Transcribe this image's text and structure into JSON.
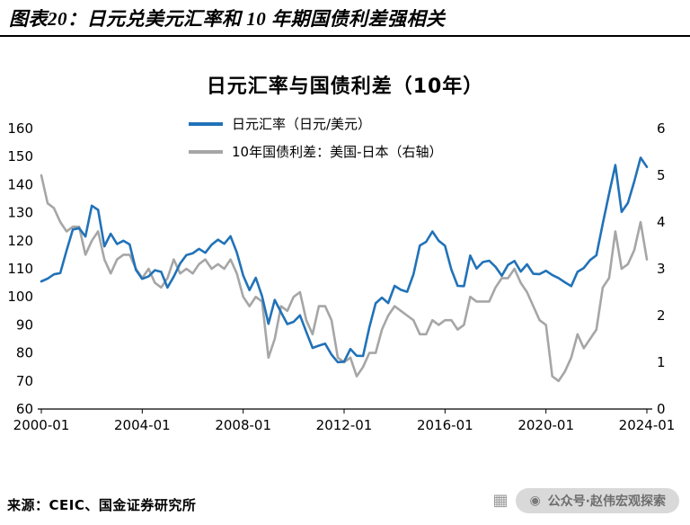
{
  "header": {
    "title": "图表20：日元兑美元汇率和 10 年期国债利差强相关"
  },
  "footer": {
    "source": "来源：CEIC、国金证券研究所",
    "badge": {
      "label": "公众号·赵伟宏观探索",
      "qr_icon_glyph": "▦",
      "camera_icon_glyph": "◉"
    }
  },
  "chart_data": {
    "type": "line",
    "title": "日元汇率与国债利差（10年）",
    "grid": false,
    "legend_position": "top-left-inside",
    "x_ticks": [
      "2000-01",
      "2004-01",
      "2008-01",
      "2012-01",
      "2016-01",
      "2020-01",
      "2024-01"
    ],
    "y_left": {
      "min": 60,
      "max": 160,
      "ticks": [
        60,
        70,
        80,
        90,
        100,
        110,
        120,
        130,
        140,
        150,
        160
      ]
    },
    "y_right": {
      "min": 0,
      "max": 6,
      "ticks": [
        0,
        1,
        2,
        3,
        4,
        5,
        6
      ]
    },
    "x": [
      "2000-01",
      "2000-04",
      "2000-07",
      "2000-10",
      "2001-01",
      "2001-04",
      "2001-07",
      "2001-10",
      "2002-01",
      "2002-04",
      "2002-07",
      "2002-10",
      "2003-01",
      "2003-04",
      "2003-07",
      "2003-10",
      "2004-01",
      "2004-04",
      "2004-07",
      "2004-10",
      "2005-01",
      "2005-04",
      "2005-07",
      "2005-10",
      "2006-01",
      "2006-04",
      "2006-07",
      "2006-10",
      "2007-01",
      "2007-04",
      "2007-07",
      "2007-10",
      "2008-01",
      "2008-04",
      "2008-07",
      "2008-10",
      "2009-01",
      "2009-04",
      "2009-07",
      "2009-10",
      "2010-01",
      "2010-04",
      "2010-07",
      "2010-10",
      "2011-01",
      "2011-04",
      "2011-07",
      "2011-10",
      "2012-01",
      "2012-04",
      "2012-07",
      "2012-10",
      "2013-01",
      "2013-04",
      "2013-07",
      "2013-10",
      "2014-01",
      "2014-04",
      "2014-07",
      "2014-10",
      "2015-01",
      "2015-04",
      "2015-07",
      "2015-10",
      "2016-01",
      "2016-04",
      "2016-07",
      "2016-10",
      "2017-01",
      "2017-04",
      "2017-07",
      "2017-10",
      "2018-01",
      "2018-04",
      "2018-07",
      "2018-10",
      "2019-01",
      "2019-04",
      "2019-07",
      "2019-10",
      "2020-01",
      "2020-04",
      "2020-07",
      "2020-10",
      "2021-01",
      "2021-04",
      "2021-07",
      "2021-10",
      "2022-01",
      "2022-04",
      "2022-07",
      "2022-10",
      "2023-01",
      "2023-04",
      "2023-07",
      "2023-10",
      "2024-01"
    ],
    "series": [
      {
        "name": "日元汇率（日元/美元）",
        "axis": "left",
        "color": "#2172B8",
        "values": [
          105.5,
          106.5,
          108.0,
          108.5,
          116.5,
          124.0,
          124.5,
          121.5,
          132.5,
          131.0,
          118.0,
          122.5,
          118.8,
          120.0,
          118.7,
          109.6,
          106.4,
          107.3,
          109.5,
          108.9,
          103.3,
          107.2,
          111.9,
          114.9,
          115.5,
          117.1,
          115.7,
          118.6,
          120.4,
          118.9,
          121.6,
          115.8,
          107.6,
          102.4,
          106.8,
          100.2,
          90.4,
          98.9,
          94.5,
          90.3,
          91.1,
          93.4,
          87.5,
          81.8,
          82.6,
          83.3,
          79.4,
          76.7,
          76.9,
          81.4,
          79.0,
          78.9,
          89.1,
          97.7,
          99.7,
          97.8,
          103.9,
          102.5,
          101.8,
          108.0,
          118.3,
          119.6,
          123.3,
          120.0,
          118.2,
          109.7,
          103.9,
          103.8,
          114.7,
          110.1,
          112.4,
          112.9,
          110.7,
          107.5,
          111.4,
          112.8,
          109.0,
          111.6,
          108.2,
          108.1,
          109.3,
          107.8,
          106.7,
          105.2,
          103.8,
          108.9,
          110.3,
          113.1,
          114.8,
          126.1,
          136.7,
          147.0,
          130.3,
          133.5,
          141.2,
          149.6,
          146.3
        ]
      },
      {
        "name": "10年国债利差：美国-日本（右轴）",
        "axis": "right",
        "color": "#A6A6A6",
        "values": [
          5.0,
          4.4,
          4.3,
          4.0,
          3.8,
          3.9,
          3.9,
          3.3,
          3.6,
          3.8,
          3.2,
          2.9,
          3.2,
          3.3,
          3.3,
          3.0,
          2.8,
          3.0,
          2.7,
          2.6,
          2.8,
          3.2,
          2.9,
          3.0,
          2.9,
          3.1,
          3.2,
          3.0,
          3.1,
          3.0,
          3.2,
          2.9,
          2.4,
          2.2,
          2.4,
          2.3,
          1.1,
          1.5,
          2.2,
          2.1,
          2.4,
          2.5,
          1.9,
          1.6,
          2.2,
          2.2,
          1.9,
          1.1,
          1.0,
          1.1,
          0.7,
          0.9,
          1.2,
          1.2,
          1.7,
          2.0,
          2.2,
          2.1,
          2.0,
          1.9,
          1.6,
          1.6,
          1.9,
          1.8,
          1.9,
          1.9,
          1.7,
          1.8,
          2.4,
          2.3,
          2.3,
          2.3,
          2.6,
          2.8,
          2.8,
          3.0,
          2.7,
          2.5,
          2.2,
          1.9,
          1.8,
          0.7,
          0.6,
          0.8,
          1.1,
          1.6,
          1.3,
          1.5,
          1.7,
          2.6,
          2.8,
          3.8,
          3.0,
          3.1,
          3.4,
          4.0,
          3.2
        ]
      }
    ]
  }
}
